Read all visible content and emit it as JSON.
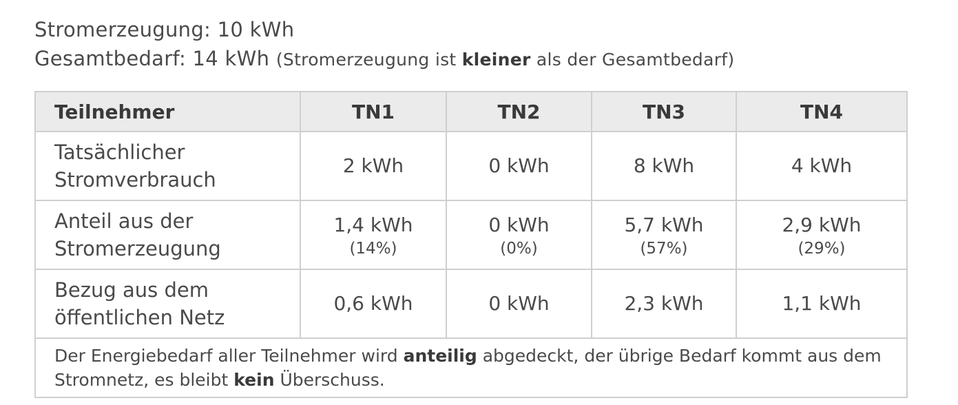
{
  "header": {
    "line1": "Stromerzeugung: 10 kWh",
    "line2": "Gesamtbedarf: 14 kWh",
    "note": [
      "(Stromerzeugung ist ",
      "kleiner",
      " als der Gesamtbedarf)"
    ]
  },
  "table": {
    "columns": [
      "Teilnehmer",
      "TN1",
      "TN2",
      "TN3",
      "TN4"
    ],
    "rows": [
      {
        "label": [
          "Tatsächlicher",
          "Stromverbrauch"
        ],
        "cells": [
          {
            "value": "2 kWh"
          },
          {
            "value": "0 kWh"
          },
          {
            "value": "8 kWh"
          },
          {
            "value": "4 kWh"
          }
        ]
      },
      {
        "label": [
          "Anteil aus der",
          "Stromerzeugung"
        ],
        "cells": [
          {
            "value": "1,4 kWh",
            "share": "(14%)"
          },
          {
            "value": "0 kWh",
            "share": "(0%)"
          },
          {
            "value": "5,7 kWh",
            "share": "(57%)"
          },
          {
            "value": "2,9 kWh",
            "share": "(29%)"
          }
        ]
      },
      {
        "label": [
          "Bezug aus dem",
          "öffentlichen Netz"
        ],
        "cells": [
          {
            "value": "0,6 kWh"
          },
          {
            "value": "0 kWh"
          },
          {
            "value": "2,3 kWh"
          },
          {
            "value": "1,1 kWh"
          }
        ]
      }
    ],
    "footer": [
      "Der Energiebedarf aller Teilnehmer wird ",
      "anteilig",
      " abgedeckt, der übrige Bedarf kommt aus dem Stromnetz, es bleibt ",
      "kein",
      " Überschuss."
    ]
  }
}
